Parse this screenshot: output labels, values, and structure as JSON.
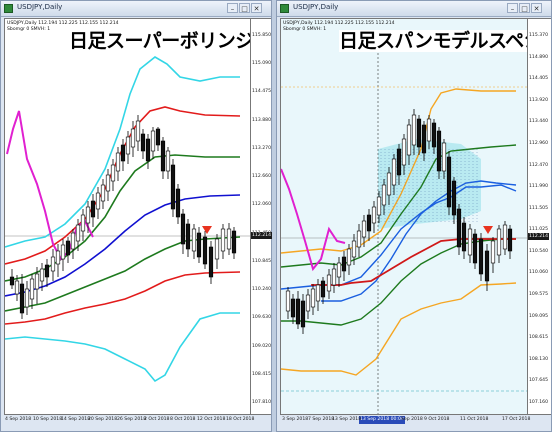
{
  "left": {
    "title": "USDJPY,Daily",
    "info_line1": "USDJPY,Daily 112.194 112.225 112.155 112.214",
    "info_line2": "Sbomgr 0 SMVH: 1",
    "overlay": "日足スーパーボリンジャー",
    "current_price": "112.214",
    "y_ticks": [
      "115.850",
      "115.090",
      "114.475",
      "113.880",
      "113.270",
      "112.660",
      "112.060",
      "111.450",
      "110.845",
      "110.240",
      "109.630",
      "109.020",
      "108.415",
      "107.810"
    ],
    "x_ticks": [
      "4 Sep 2018",
      "10 Sep 2018",
      "14 Sep 2018",
      "20 Sep 2018",
      "26 Sep 2018",
      "2 Oct 2018",
      "8 Oct 2018",
      "12 Oct 2018",
      "18 Oct 2018"
    ],
    "colors": {
      "upper3": "#33d6e6",
      "upper2": "#e21b1b",
      "upper1": "#1e7a1e",
      "mid": "#1010d0",
      "span": "#e020d0",
      "candle_up": "#ffffff",
      "candle_down": "#111111"
    }
  },
  "right": {
    "title": "USDJPY,Daily",
    "info_line1": "USDJPY,Daily 112.194 112.225 112.155 112.214",
    "info_line2": "Sbomgr 0 SMVH: 1",
    "overlay": "日足スパンモデルスペシャル",
    "current_price": "112.214",
    "cursor_label": "13 Sep 2018 00:00",
    "y_ticks": [
      "115.370",
      "114.890",
      "114.405",
      "113.920",
      "113.440",
      "112.960",
      "112.470",
      "111.990",
      "111.505",
      "111.025",
      "110.540",
      "110.060",
      "109.575",
      "109.095",
      "108.615",
      "108.130",
      "107.645",
      "107.160"
    ],
    "x_ticks": [
      "3 Sep 2018",
      "7 Sep 2018",
      "13 Sep 2018",
      "Sep 2018",
      "9 Oct 2018",
      "11 Oct 2018",
      "17 Oct 2018"
    ],
    "colors": {
      "orange": "#f5a623",
      "green": "#1e7a1e",
      "blue": "#1a5fe0",
      "red": "#d01818",
      "span": "#e020d0",
      "cloud": "#a8e6ee"
    }
  },
  "icons": [
    "chart-window-icon",
    "minimize-icon",
    "maximize-icon",
    "close-icon",
    "signal-arrow-icon"
  ]
}
